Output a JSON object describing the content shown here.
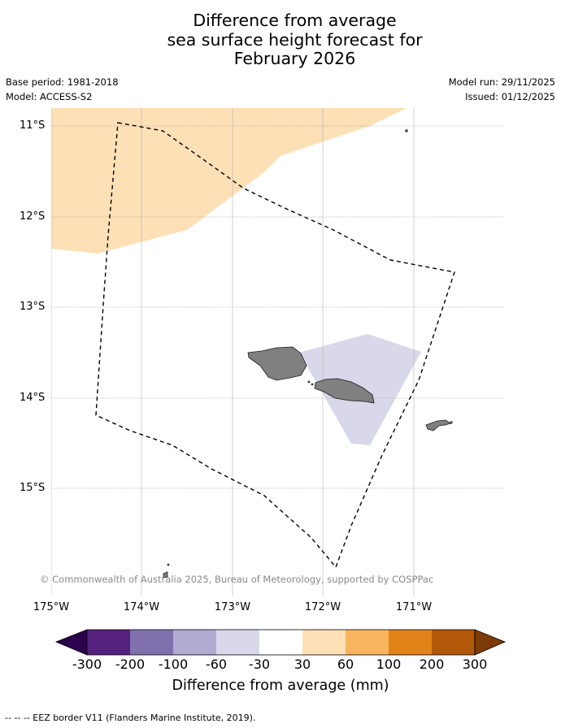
{
  "title": {
    "line1": "Difference from average",
    "line2": "sea surface height forecast for",
    "line3": "February 2026"
  },
  "meta": {
    "base_period": "Base period: 1981-2018",
    "model": "Model: ACCESS-S2",
    "model_run": "Model run: 29/11/2025",
    "issued": "Issued: 01/12/2025"
  },
  "map": {
    "lat_labels": [
      "11°S",
      "12°S",
      "13°S",
      "14°S",
      "15°S"
    ],
    "lon_labels": [
      "175°W",
      "174°W",
      "173°W",
      "172°W",
      "171°W"
    ],
    "credit": "© Commonwealth of Australia 2025, Bureau of Meteorology, supported by COSPPac",
    "land_color": "#808080",
    "eez_border_color": "#000000"
  },
  "colorbar": {
    "label": "Difference from average (mm)",
    "ticks": [
      "-300",
      "-200",
      "-100",
      "-60",
      "-30",
      "30",
      "60",
      "100",
      "200",
      "300"
    ],
    "colors": [
      "#56207f",
      "#8070ad",
      "#b2aad2",
      "#d8d8ea",
      "#ffffff",
      "#fde0b6",
      "#f9b55e",
      "#e2831a",
      "#b35709"
    ],
    "under_color": "#2d024c",
    "over_color": "#7f3b07"
  },
  "footnote": "--  --  -- EEZ border V11 (Flanders Marine Institute, 2019)."
}
